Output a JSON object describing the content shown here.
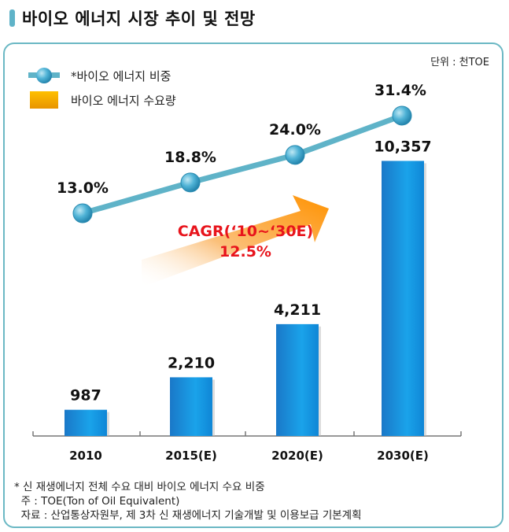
{
  "title": "바이오 에너지 시장 추이 및 전망",
  "unit": "단위 : 천TOE",
  "chart_data": {
    "type": "bar+line",
    "categories": [
      "2010",
      "2015(E)",
      "2020(E)",
      "2030(E)"
    ],
    "series": [
      {
        "name": "바이오 에너지 수요량",
        "type": "bar",
        "values": [
          987,
          2210,
          4211,
          10357
        ],
        "labels": [
          "987",
          "2,210",
          "4,211",
          "10,357"
        ],
        "color": "#1f8fd8"
      },
      {
        "name": "*바이오 에너지 비중",
        "type": "line",
        "values": [
          13.0,
          18.8,
          24.0,
          31.4
        ],
        "labels": [
          "13.0%",
          "18.8%",
          "24.0%",
          "31.4%"
        ],
        "color": "#5fb3c8"
      }
    ],
    "bar_ylim": [
      0,
      12000
    ],
    "line_ylim": [
      0,
      40
    ],
    "legend_position": "top-left",
    "grid": false,
    "annotation": {
      "line1": "CAGR(‘10~‘30E)",
      "line2": "12.5%",
      "color": "#e8141c"
    }
  },
  "notes": [
    "* 신 재생에너지 전체 수요 대비 바이오 에너지 수요 비중",
    "  주 : TOE(Ton of Oil Equivalent)",
    "  자료 : 산업통상자원부, 제 3차 신 재생에너지 기술개발 및 이용보급 기본계획"
  ]
}
